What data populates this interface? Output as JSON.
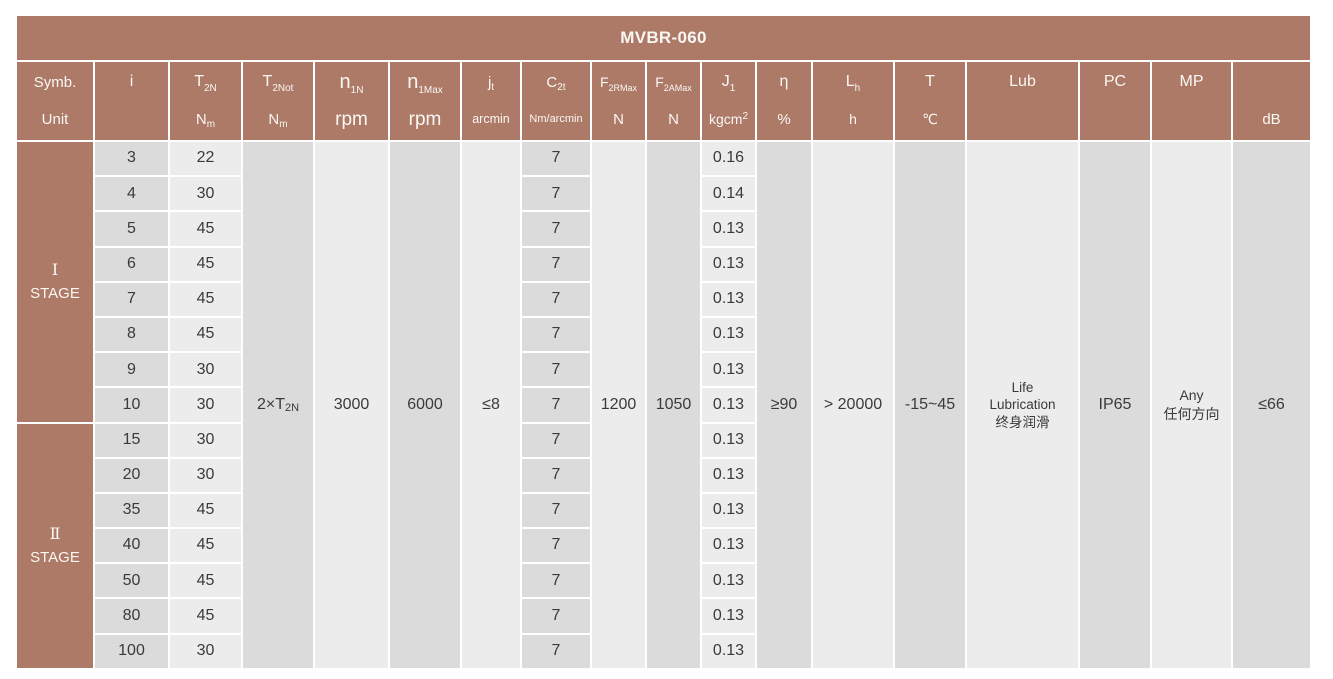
{
  "title": "MVBR-060",
  "colors": {
    "brown": "#ac7a67",
    "gray_dark": "#dbdbdb",
    "gray_light": "#ececec",
    "text": "#3a3a3a",
    "header_text": "#fbf7f4"
  },
  "header": {
    "symbol_label": "Symb.",
    "unit_label": "Unit",
    "columns": [
      {
        "key": "i",
        "sym": "i",
        "sym_sub": "",
        "unit": "",
        "unit_sub": "",
        "unit_sup": ""
      },
      {
        "key": "t2n",
        "sym": "T",
        "sym_sub": "2N",
        "unit": "N",
        "unit_sub": "m",
        "unit_sup": ""
      },
      {
        "key": "t2not",
        "sym": "T",
        "sym_sub": "2Not",
        "unit": "N",
        "unit_sub": "m",
        "unit_sup": ""
      },
      {
        "key": "n1n",
        "sym": "n",
        "sym_sub": "1N",
        "unit": "rpm",
        "unit_sub": "",
        "unit_sup": ""
      },
      {
        "key": "n1max",
        "sym": "n",
        "sym_sub": "1Max",
        "unit": "rpm",
        "unit_sub": "",
        "unit_sup": ""
      },
      {
        "key": "jt",
        "sym": "j",
        "sym_sub": "t",
        "unit": "arcmin",
        "unit_sub": "",
        "unit_sup": ""
      },
      {
        "key": "c2t",
        "sym": "C",
        "sym_sub": "2t",
        "unit": "Nm/arcmin",
        "unit_sub": "",
        "unit_sup": ""
      },
      {
        "key": "f2rmax",
        "sym": "F",
        "sym_sub": "2RMax",
        "unit": "N",
        "unit_sub": "",
        "unit_sup": ""
      },
      {
        "key": "f2amax",
        "sym": "F",
        "sym_sub": "2AMax",
        "unit": "N",
        "unit_sub": "",
        "unit_sup": ""
      },
      {
        "key": "j1",
        "sym": "J",
        "sym_sub": "1",
        "unit": "kgcm",
        "unit_sub": "",
        "unit_sup": "2"
      },
      {
        "key": "eta",
        "sym": "η",
        "sym_sub": "",
        "unit": "%",
        "unit_sub": "",
        "unit_sup": ""
      },
      {
        "key": "lh",
        "sym": "L",
        "sym_sub": "h",
        "unit": "h",
        "unit_sub": "",
        "unit_sup": ""
      },
      {
        "key": "t",
        "sym": "T",
        "sym_sub": "",
        "unit": "℃",
        "unit_sub": "",
        "unit_sup": ""
      },
      {
        "key": "lub",
        "sym": "Lub",
        "sym_sub": "",
        "unit": "",
        "unit_sub": "",
        "unit_sup": ""
      },
      {
        "key": "pc",
        "sym": "PC",
        "sym_sub": "",
        "unit": "",
        "unit_sub": "",
        "unit_sup": ""
      },
      {
        "key": "mp",
        "sym": "MP",
        "sym_sub": "",
        "unit": "",
        "unit_sub": "",
        "unit_sup": ""
      },
      {
        "key": "db",
        "sym": "",
        "sym_sub": "",
        "unit": "dB",
        "unit_sub": "",
        "unit_sup": ""
      }
    ]
  },
  "stages": [
    {
      "numeral": "Ⅰ",
      "label": "STAGE",
      "rows": [
        {
          "i": "3",
          "t2n": "22",
          "c2t": "7",
          "j1": "0.16"
        },
        {
          "i": "4",
          "t2n": "30",
          "c2t": "7",
          "j1": "0.14"
        },
        {
          "i": "5",
          "t2n": "45",
          "c2t": "7",
          "j1": "0.13"
        },
        {
          "i": "6",
          "t2n": "45",
          "c2t": "7",
          "j1": "0.13"
        },
        {
          "i": "7",
          "t2n": "45",
          "c2t": "7",
          "j1": "0.13"
        },
        {
          "i": "8",
          "t2n": "45",
          "c2t": "7",
          "j1": "0.13"
        },
        {
          "i": "9",
          "t2n": "30",
          "c2t": "7",
          "j1": "0.13"
        },
        {
          "i": "10",
          "t2n": "30",
          "c2t": "7",
          "j1": "0.13"
        }
      ]
    },
    {
      "numeral": "Ⅱ",
      "label": "STAGE",
      "rows": [
        {
          "i": "15",
          "t2n": "30",
          "c2t": "7",
          "j1": "0.13"
        },
        {
          "i": "20",
          "t2n": "30",
          "c2t": "7",
          "j1": "0.13"
        },
        {
          "i": "35",
          "t2n": "45",
          "c2t": "7",
          "j1": "0.13"
        },
        {
          "i": "40",
          "t2n": "45",
          "c2t": "7",
          "j1": "0.13"
        },
        {
          "i": "50",
          "t2n": "45",
          "c2t": "7",
          "j1": "0.13"
        },
        {
          "i": "80",
          "t2n": "45",
          "c2t": "7",
          "j1": "0.13"
        },
        {
          "i": "100",
          "t2n": "30",
          "c2t": "7",
          "j1": "0.13"
        }
      ]
    }
  ],
  "merged": {
    "t2not": {
      "base": "2×T",
      "sub": "2N"
    },
    "n1n": "3000",
    "n1max": "6000",
    "jt": "≤8",
    "f2rmax": "1200",
    "f2amax": "1050",
    "eta": "≥90",
    "lh": "> 20000",
    "t": "-15~45",
    "lub": {
      "lines": [
        "Life",
        "Lubrication",
        "终身润滑"
      ]
    },
    "pc": "IP65",
    "mp": {
      "lines": [
        "Any",
        "任何方向"
      ]
    },
    "db": "≤66"
  }
}
